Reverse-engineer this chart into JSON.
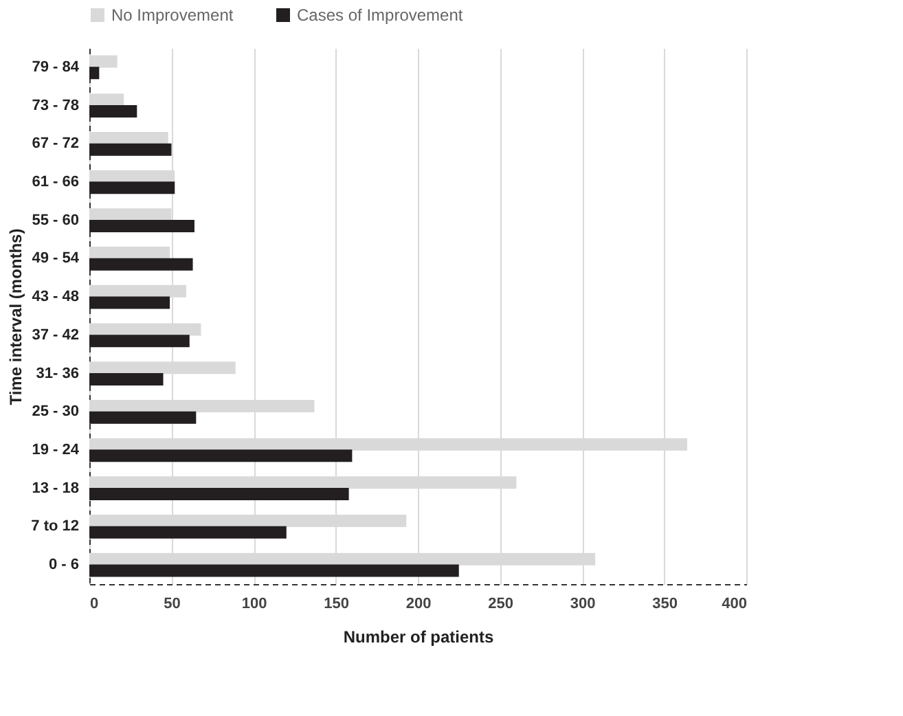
{
  "chart_data": {
    "type": "bar",
    "orientation": "horizontal",
    "xlabel": "Number of patients",
    "ylabel": "Time interval (months)",
    "categories": [
      "79 - 84",
      "73 - 78",
      "67 - 72",
      "61 - 66",
      "55 - 60",
      "49 - 54",
      "43 - 48",
      "37 - 42",
      "31- 36",
      "25 - 30",
      "19 - 24",
      "13 - 18",
      "7 to 12",
      "0 - 6"
    ],
    "series": [
      {
        "name": "No Improvement",
        "color": "#d9d9d9",
        "values": [
          17,
          21,
          48,
          52,
          50,
          49,
          59,
          68,
          89,
          137,
          364,
          260,
          193,
          308
        ]
      },
      {
        "name": "Cases of Improvement",
        "color": "#231f20",
        "values": [
          6,
          29,
          50,
          52,
          64,
          63,
          49,
          61,
          45,
          65,
          160,
          158,
          120,
          225
        ]
      }
    ],
    "xlim": [
      0,
      400
    ],
    "xticks": [
      0,
      50,
      100,
      150,
      200,
      250,
      300,
      350,
      400
    ],
    "grid": "x",
    "legend": "top"
  }
}
